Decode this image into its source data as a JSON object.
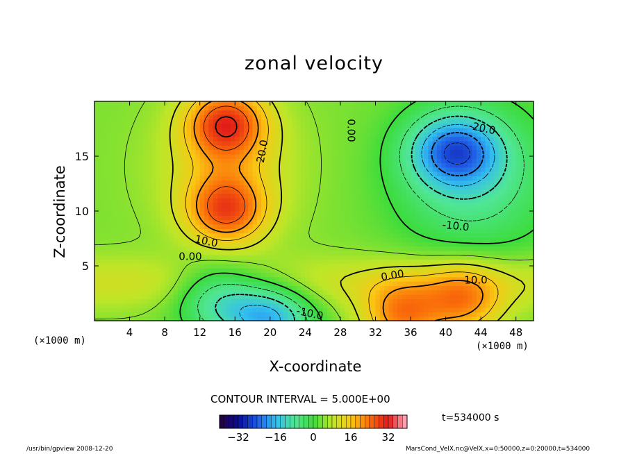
{
  "chart_data": {
    "type": "heatmap",
    "title": "zonal velocity",
    "xlabel": "X-coordinate",
    "ylabel": "Z-coordinate",
    "x_unit_left": "(×1000 m)",
    "x_unit_right": "(×1000 m)",
    "xlim": [
      0,
      50
    ],
    "ylim": [
      0,
      20
    ],
    "x_ticks": [
      4,
      8,
      12,
      16,
      20,
      24,
      28,
      32,
      36,
      40,
      44,
      48
    ],
    "y_ticks": [
      5,
      10,
      15
    ],
    "contour_interval_text": "CONTOUR INTERVAL = 5.000E+00",
    "contour_labels": [
      "20.0",
      "0.00",
      "-20.0",
      "10.0",
      "-10.0",
      "10.0",
      "0.00",
      "0.00",
      "-10.0",
      "10.0"
    ],
    "colorbar": {
      "min": -40,
      "max": 40,
      "ticks": [
        "−32",
        "−16",
        "0",
        "16",
        "32"
      ]
    },
    "time_label": "t=534000 s",
    "field_features": [
      {
        "kind": "max",
        "x": 15,
        "z": 18,
        "value": 28
      },
      {
        "kind": "max",
        "x": 15,
        "z": 10.1,
        "value": 25
      },
      {
        "kind": "min",
        "x": 41,
        "z": 15.5,
        "value": -26
      },
      {
        "kind": "min",
        "x": 14,
        "z": 2.3,
        "value": -18
      },
      {
        "kind": "min",
        "x": 20,
        "z": 0.3,
        "value": -25
      },
      {
        "kind": "max",
        "x": 42,
        "z": 1.8,
        "value": 20
      },
      {
        "kind": "max",
        "x": 35,
        "z": 0.5,
        "value": 22
      }
    ]
  },
  "footer_left": "/usr/bin/gpview   2008-12-20",
  "footer_right": "MarsCond_VelX.nc@VelX,x=0:50000,z=0:20000,t=534000",
  "colors": {
    "background": "#ffffff",
    "frame": "#000000"
  }
}
